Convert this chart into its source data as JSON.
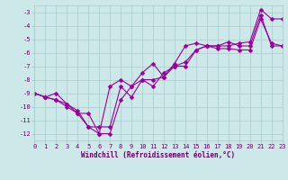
{
  "x": [
    0,
    1,
    2,
    3,
    4,
    5,
    6,
    7,
    8,
    9,
    10,
    11,
    12,
    13,
    14,
    15,
    16,
    17,
    18,
    19,
    20,
    21,
    22,
    23
  ],
  "line1": [
    -9.0,
    -9.3,
    -9.5,
    -10.0,
    -10.5,
    -11.5,
    -11.5,
    -11.5,
    -8.5,
    -9.3,
    -8.0,
    -8.0,
    -7.8,
    -7.0,
    -6.7,
    -5.8,
    -5.5,
    -5.7,
    -5.7,
    -5.8,
    -5.8,
    -3.5,
    -5.3,
    -5.5
  ],
  "line2": [
    -9.0,
    -9.3,
    -9.5,
    -9.8,
    -10.5,
    -10.5,
    -12.0,
    -12.0,
    -9.5,
    -8.5,
    -8.0,
    -8.5,
    -7.5,
    -7.0,
    -7.0,
    -5.8,
    -5.5,
    -5.5,
    -5.2,
    -5.5,
    -5.5,
    -3.2,
    -5.5,
    -5.5
  ],
  "line3": [
    -9.0,
    -9.3,
    -9.0,
    -9.8,
    -10.3,
    -11.5,
    -12.0,
    -8.5,
    -8.0,
    -8.5,
    -7.5,
    -6.8,
    -7.8,
    -6.8,
    -5.5,
    -5.3,
    -5.5,
    -5.5,
    -5.5,
    -5.3,
    -5.2,
    -2.8,
    -3.5,
    -3.5
  ],
  "bg_color": "#cce8e8",
  "grid_color": "#aacccc",
  "line_color": "#990099",
  "marker_size": 2.5,
  "xlim": [
    0,
    23
  ],
  "ylim": [
    -12.5,
    -2.5
  ],
  "yticks": [
    -12,
    -11,
    -10,
    -9,
    -8,
    -7,
    -6,
    -5,
    -4,
    -3
  ],
  "xtick_labels": [
    "0",
    "1",
    "2",
    "3",
    "4",
    "5",
    "6",
    "7",
    "8",
    "9",
    "10",
    "11",
    "12",
    "13",
    "14",
    "15",
    "16",
    "17",
    "18",
    "19",
    "20",
    "21",
    "22",
    "23"
  ],
  "xlabel": "Windchill (Refroidissement éolien,°C)",
  "font_color": "#660066"
}
